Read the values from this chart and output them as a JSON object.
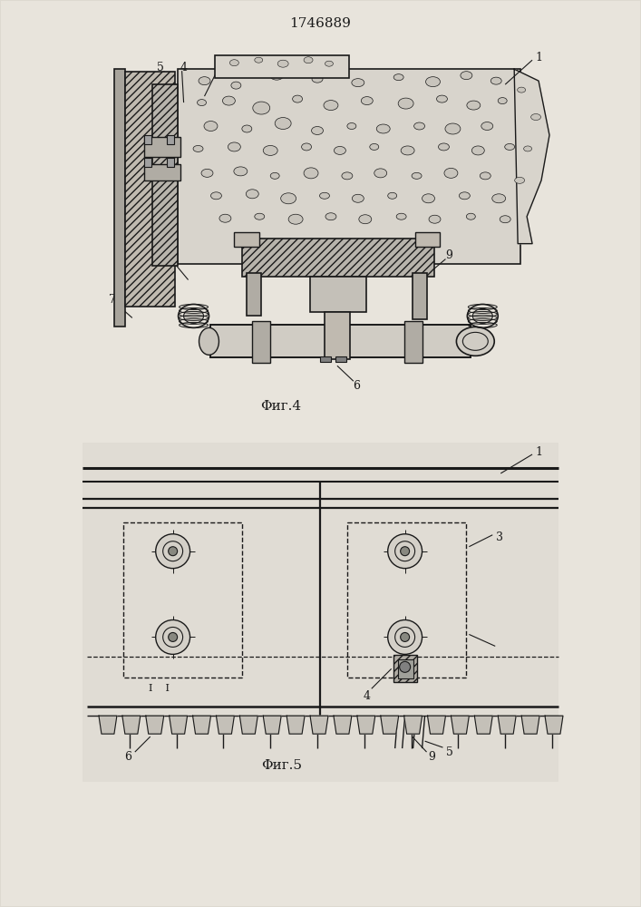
{
  "title": "1746889",
  "fig4_label": "Φиг.4",
  "fig5_label": "Φиг.5",
  "bg_color": "#e8e4dc",
  "line_color": "#1a1a1a",
  "page_bg": "#ddd9d0",
  "concrete_fc": "#d8d4cc",
  "hatch_fc": "#c0bab0",
  "stone_fc": "#c8c4bc"
}
